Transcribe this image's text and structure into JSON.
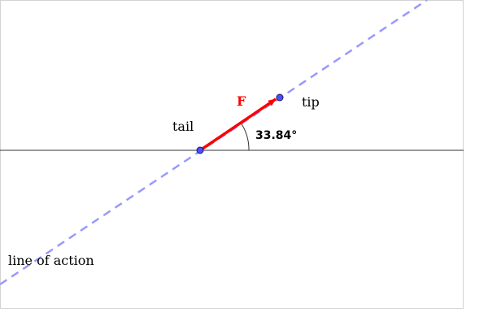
{
  "labels": {
    "tail": "tail",
    "tip": "tip",
    "force": "F",
    "angle": "33.84°",
    "line_of_action": "line of action"
  },
  "colors": {
    "force": "#ff0000",
    "line_of_action": "#9999ff",
    "points": "#4d4dff",
    "axis": "#333333",
    "frame": "#d3d3d3"
  }
}
